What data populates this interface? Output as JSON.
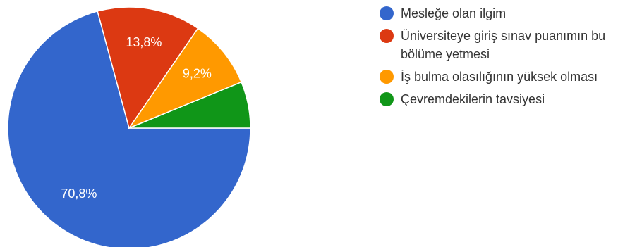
{
  "chart_data": {
    "type": "pie",
    "title": "",
    "legend_position": "right",
    "slices": [
      {
        "label": "Mesleğe olan ilgim",
        "value": 70.8,
        "display": "70,8%",
        "color": "#3366cc"
      },
      {
        "label": "Üniversiteye giriş sınav puanımın bu bölüme yetmesi",
        "value": 13.8,
        "display": "13,8%",
        "color": "#dc3912"
      },
      {
        "label": "İş bulma olasılığının yüksek olması",
        "value": 9.2,
        "display": "9,2%",
        "color": "#ff9900"
      },
      {
        "label": "Çevremdekilerin tavsiyesi",
        "value": 6.2,
        "display": "",
        "color": "#109618"
      }
    ]
  }
}
